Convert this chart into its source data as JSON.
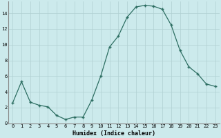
{
  "x": [
    0,
    1,
    2,
    3,
    4,
    5,
    6,
    7,
    8,
    9,
    10,
    11,
    12,
    13,
    14,
    15,
    16,
    17,
    18,
    19,
    20,
    21,
    22,
    23
  ],
  "y": [
    2.6,
    5.3,
    2.7,
    2.3,
    2.1,
    1.0,
    0.5,
    0.8,
    0.8,
    3.0,
    6.0,
    9.7,
    11.1,
    13.5,
    14.8,
    15.0,
    14.9,
    14.5,
    12.5,
    9.3,
    7.2,
    6.3,
    5.0,
    4.7
  ],
  "xlabel": "Humidex (Indice chaleur)",
  "xlim": [
    -0.5,
    23.5
  ],
  "ylim": [
    0,
    15.5
  ],
  "yticks": [
    0,
    2,
    4,
    6,
    8,
    10,
    12,
    14
  ],
  "xticks": [
    0,
    1,
    2,
    3,
    4,
    5,
    6,
    7,
    8,
    9,
    10,
    11,
    12,
    13,
    14,
    15,
    16,
    17,
    18,
    19,
    20,
    21,
    22,
    23
  ],
  "line_color": "#2d6e62",
  "bg_color": "#cceaec",
  "grid_color": "#b0d0d2",
  "fig_bg": "#cceaec",
  "tick_fontsize": 5.0,
  "xlabel_fontsize": 6.0
}
